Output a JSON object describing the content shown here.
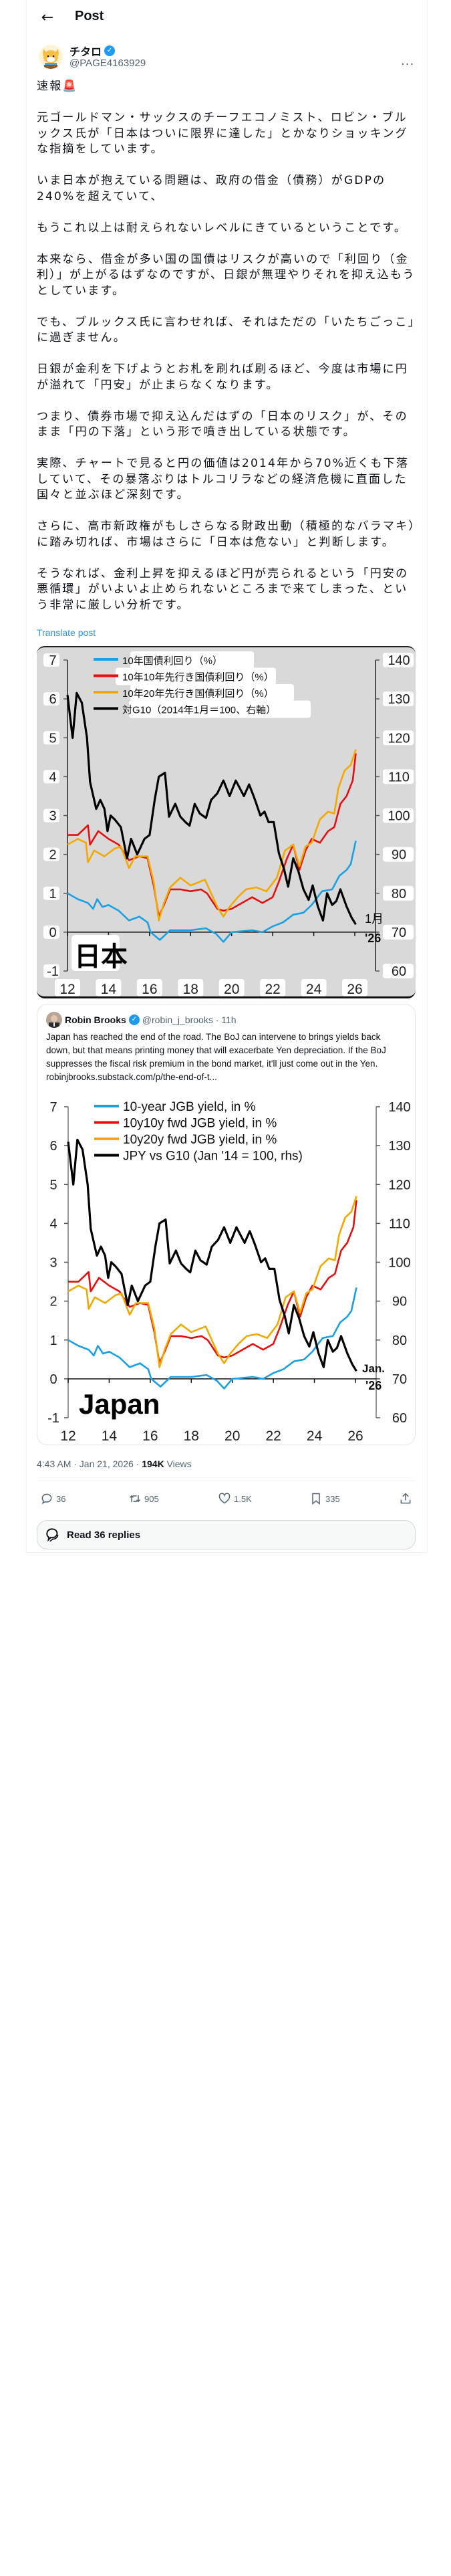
{
  "header": {
    "title": "Post"
  },
  "author": {
    "name": "チタロ",
    "handle": "@PAGE4163929",
    "verified": true
  },
  "post": {
    "text": "速報🚨\n\n元ゴールドマン・サックスのチーフエコノミスト、ロビン・ブルックス氏が「日本はついに限界に達した」とかなりショッキングな指摘をしています。\n\nいま日本が抱えている問題は、政府の借金（債務）がGDPの240%を超えていて、\n\nもうこれ以上は耐えられないレベルにきているということです。\n\n本来なら、借金が多い国の国債はリスクが高いので「利回り（金利）」が上がるはずなのですが、日銀が無理やりそれを抑え込もうとしています。\n\nでも、ブルックス氏に言わせれば、それはただの「いたちごっこ」に過ぎません。\n\n日銀が金利を下げようとお札を刷れば刷るほど、今度は市場に円が溢れて「円安」が止まらなくなります。\n\nつまり、債券市場で抑え込んだはずの「日本のリスク」が、そのまま「円の下落」という形で噴き出している状態です。\n\n実際、チャートで見ると円の価値は2014年から70%近くも下落していて、その暴落ぶりはトルコリラなどの経済危機に直面した国々と並ぶほど深刻です。\n\nさらに、高市新政権がもしさらなる財政出動（積極的なバラマキ）に踏み切れば、市場はさらに「日本は危ない」と判断します。\n\nそうなれば、金利上昇を抑えるほど円が売られるという「円安の悪循環」がいよいよ止められないところまで来てしまった、という非常に厳しい分析です。",
    "translate": "Translate post",
    "timestamp": "4:43 AM · Jan 21, 2026 · ",
    "views": "194K",
    "views_label": " Views"
  },
  "quote": {
    "name": "Robin Brooks",
    "handle": "@robin_j_brooks · 11h",
    "text": "Japan has reached the end of the road. The BoJ can intervene to brings yields back down, but that means printing money that will exacerbate Yen depreciation. If the BoJ suppresses the fiscal risk premium in the bond market, it'll just come out in the Yen.",
    "link": "robinjbrooks.substack.com/p/the-end-of-t..."
  },
  "actions": {
    "replies": "36",
    "reposts": "905",
    "likes": "1.5K",
    "bookmarks": "335"
  },
  "read_replies": "Read 36 replies",
  "colors": {
    "blue": "#1ba1e2",
    "red": "#e31010",
    "yellow": "#f2a900",
    "black": "#000000",
    "accent": "#1d9bf0"
  },
  "chart_data": [
    {
      "type": "line",
      "title": "日本",
      "end_label": [
        "1月",
        "'26"
      ],
      "xlim": [
        12,
        26
      ],
      "ylim": [
        -1,
        7
      ],
      "y2lim": [
        60,
        140
      ],
      "xticks": [
        "12",
        "14",
        "16",
        "18",
        "20",
        "22",
        "24",
        "26"
      ],
      "yticks": [
        "-1",
        "0",
        "1",
        "2",
        "3",
        "4",
        "5",
        "6",
        "7"
      ],
      "y2ticks": [
        "60",
        "70",
        "80",
        "90",
        "100",
        "110",
        "120",
        "130",
        "140"
      ],
      "legend": [
        "10年国債利回り（%）",
        "10年10年先行き国債利回り（%）",
        "10年20年先行き国債利回り（%）",
        "対G10（2014年1月＝100、右軸）"
      ]
    },
    {
      "type": "line",
      "title": "Japan",
      "end_label": [
        "Jan.",
        "'26"
      ],
      "xlim": [
        12,
        26
      ],
      "ylim": [
        -1,
        7
      ],
      "y2lim": [
        60,
        140
      ],
      "xticks": [
        "12",
        "14",
        "16",
        "18",
        "20",
        "22",
        "24",
        "26"
      ],
      "yticks": [
        "-1",
        "0",
        "1",
        "2",
        "3",
        "4",
        "5",
        "6",
        "7"
      ],
      "y2ticks": [
        "60",
        "70",
        "80",
        "90",
        "100",
        "110",
        "120",
        "130",
        "140"
      ],
      "legend": [
        "10-year JGB yield, in %",
        "10y10y fwd JGB yield, in %",
        "10y20y fwd JGB yield, in %",
        "JPY vs G10 (Jan '14 = 100, rhs)"
      ]
    }
  ],
  "series": [
    {
      "name": "10y",
      "axis": "left",
      "color": "#1ba1e2",
      "x": [
        12,
        12.5,
        13,
        13.25,
        13.45,
        13.7,
        14,
        14.5,
        15,
        15.5,
        15.9,
        16.05,
        16.5,
        17,
        18,
        18.75,
        19.25,
        19.6,
        20,
        21,
        21.5,
        22,
        22.5,
        23,
        23.5,
        23.9,
        24.4,
        24.9,
        25.25,
        25.6,
        25.8,
        26.05
      ],
      "y": [
        1,
        0.85,
        0.75,
        0.6,
        0.85,
        0.65,
        0.7,
        0.55,
        0.3,
        0.4,
        0.25,
        0,
        -0.2,
        0.05,
        0.05,
        0.1,
        -0.05,
        -0.25,
        0,
        0.05,
        0,
        0.15,
        0.25,
        0.45,
        0.5,
        0.7,
        1.05,
        1.1,
        1.45,
        1.6,
        1.75,
        2.35
      ]
    },
    {
      "name": "10y10y",
      "axis": "left",
      "color": "#e31010",
      "x": [
        12,
        12.5,
        13,
        13.1,
        13.5,
        14,
        14.5,
        15,
        15.5,
        15.9,
        16.2,
        16.45,
        16.7,
        17,
        17.5,
        18,
        18.5,
        18.8,
        19.3,
        19.6,
        20,
        20.5,
        21,
        21.5,
        22,
        22.3,
        22.7,
        23,
        23.3,
        23.6,
        23.9,
        24.3,
        24.7,
        25,
        25.3,
        25.6,
        25.9,
        26.05
      ],
      "y": [
        2.5,
        2.5,
        2.75,
        2.25,
        2.6,
        2.4,
        2.25,
        1.85,
        1.95,
        1.9,
        1.2,
        0.4,
        0.7,
        1.1,
        1.1,
        1.05,
        1.1,
        1,
        0.6,
        0.55,
        0.6,
        0.75,
        0.9,
        0.75,
        0.9,
        1.3,
        1.9,
        2.25,
        1.6,
        2.1,
        2.4,
        2.3,
        2.6,
        2.7,
        3.3,
        3.5,
        3.9,
        4.6
      ]
    },
    {
      "name": "10y20y",
      "axis": "left",
      "color": "#f2a900",
      "x": [
        12,
        12.5,
        12.9,
        13,
        13.3,
        13.8,
        14.3,
        14.6,
        15,
        15.3,
        15.9,
        16.2,
        16.45,
        16.7,
        17,
        17.5,
        18,
        18.7,
        19.3,
        19.6,
        19.9,
        20.3,
        20.7,
        21.2,
        21.7,
        22.2,
        22.6,
        23,
        23.3,
        23.6,
        23.9,
        24.3,
        24.7,
        25,
        25.2,
        25.5,
        25.8,
        26.05
      ],
      "y": [
        2.25,
        2.4,
        2.3,
        1.8,
        2.1,
        1.95,
        2.15,
        2.2,
        1.65,
        1.95,
        1.95,
        1.3,
        0.3,
        0.75,
        1.15,
        1.4,
        1.2,
        1.35,
        0.65,
        0.4,
        0.65,
        0.9,
        1.1,
        1.15,
        1.05,
        1.4,
        2.1,
        2.25,
        1.7,
        2.2,
        2.3,
        2.9,
        3.1,
        3.05,
        3.7,
        4.15,
        4.3,
        4.7
      ]
    },
    {
      "name": "JPY vs G10",
      "axis": "right",
      "color": "#000000",
      "x": [
        12,
        12.25,
        12.45,
        12.7,
        12.95,
        13.1,
        13.4,
        13.6,
        13.8,
        13.95,
        14.1,
        14.3,
        14.6,
        14.9,
        15.1,
        15.4,
        15.75,
        16,
        16.25,
        16.45,
        16.75,
        16.95,
        17.25,
        17.5,
        17.75,
        17.95,
        18.2,
        18.45,
        18.75,
        19,
        19.3,
        19.6,
        19.9,
        20.2,
        20.6,
        20.85,
        21.1,
        21.4,
        21.6,
        21.8,
        22.05,
        22.3,
        22.55,
        22.75,
        23,
        23.25,
        23.5,
        23.75,
        23.95,
        24.2,
        24.45,
        24.65,
        24.9,
        25.1,
        25.3,
        25.6,
        25.85,
        26.05
      ],
      "y": [
        131,
        120,
        131.5,
        129,
        120,
        108.6,
        101.7,
        104,
        101.7,
        96,
        100,
        99,
        97,
        89,
        94,
        90,
        94,
        95,
        104,
        110,
        111,
        99.7,
        103,
        99.7,
        98.3,
        97.4,
        103,
        100.5,
        99.4,
        104,
        105.7,
        109,
        105,
        109,
        105,
        108,
        104.6,
        100,
        101,
        98.3,
        98.3,
        90.3,
        86.3,
        81.7,
        89,
        85.7,
        81,
        78.3,
        82,
        76.6,
        73,
        80,
        77,
        78,
        81,
        76.6,
        73.7,
        72
      ]
    }
  ]
}
